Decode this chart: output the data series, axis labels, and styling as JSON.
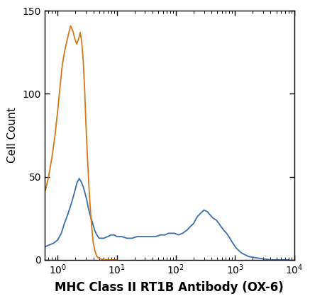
{
  "title": "",
  "xlabel": "MHC Class II RT1B Antibody (OX-6)",
  "ylabel": "Cell Count",
  "xlim": [
    0.6,
    10000
  ],
  "ylim": [
    0,
    150
  ],
  "yticks": [
    0,
    50,
    100,
    150
  ],
  "blue_color": "#3A6FA8",
  "orange_color": "#D4781A",
  "blue_linewidth": 1.3,
  "orange_linewidth": 1.3,
  "background_color": "#ffffff",
  "blue_x": [
    0.62,
    0.72,
    0.85,
    1.0,
    1.15,
    1.3,
    1.5,
    1.7,
    1.9,
    2.1,
    2.3,
    2.5,
    2.7,
    2.9,
    3.1,
    3.3,
    3.6,
    3.9,
    4.2,
    4.6,
    5.0,
    5.5,
    6.0,
    7.0,
    8.0,
    9.0,
    10.0,
    12.0,
    15.0,
    18.0,
    22.0,
    27.0,
    32.0,
    38.0,
    45.0,
    55.0,
    65.0,
    75.0,
    85.0,
    95.0,
    110.0,
    130.0,
    155.0,
    175.0,
    200.0,
    230.0,
    260.0,
    300.0,
    340.0,
    380.0,
    430.0,
    480.0,
    530.0,
    580.0,
    640.0,
    720.0,
    820.0,
    920.0,
    1050.0,
    1300.0,
    1700.0,
    2500.0,
    4000.0,
    8000.0
  ],
  "blue_y": [
    8,
    9,
    10,
    12,
    16,
    22,
    28,
    34,
    40,
    46,
    49,
    47,
    44,
    40,
    36,
    31,
    26,
    22,
    18,
    15,
    13,
    13,
    13,
    14,
    15,
    15,
    14,
    14,
    13,
    13,
    14,
    14,
    14,
    14,
    14,
    15,
    15,
    16,
    16,
    16,
    15,
    16,
    18,
    20,
    22,
    26,
    28,
    30,
    29,
    27,
    25,
    24,
    22,
    20,
    18,
    16,
    13,
    10,
    7,
    4,
    2,
    1,
    0,
    0
  ],
  "orange_x": [
    0.62,
    0.7,
    0.8,
    0.9,
    1.0,
    1.1,
    1.2,
    1.35,
    1.5,
    1.65,
    1.8,
    1.95,
    2.1,
    2.25,
    2.4,
    2.55,
    2.7,
    2.85,
    3.0,
    3.2,
    3.4,
    3.6,
    3.8,
    4.0,
    4.3,
    4.6,
    5.0,
    5.5,
    6.0,
    6.5,
    7.0,
    7.5,
    8.0,
    9.0,
    10.0
  ],
  "orange_y": [
    42,
    50,
    62,
    75,
    90,
    105,
    118,
    128,
    135,
    141,
    138,
    133,
    130,
    133,
    137,
    131,
    120,
    103,
    82,
    60,
    42,
    28,
    18,
    10,
    5,
    2,
    1,
    0.3,
    0.1,
    0,
    0,
    0,
    0,
    0,
    0
  ]
}
